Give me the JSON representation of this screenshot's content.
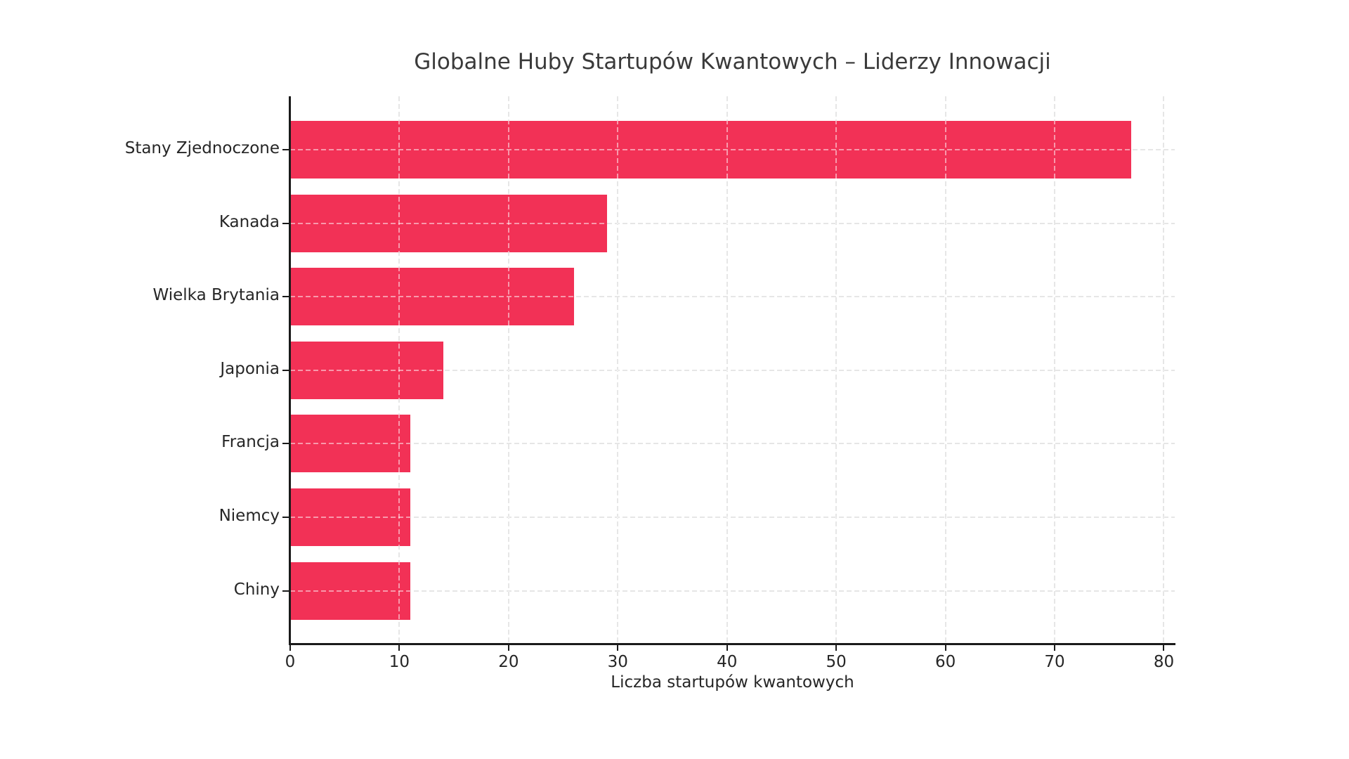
{
  "chart_data": {
    "type": "bar",
    "orientation": "horizontal",
    "title": "Globalne Huby Startupów Kwantowych – Liderzy Innowacji",
    "xlabel": "Liczba startupów kwantowych",
    "ylabel": "",
    "categories": [
      "Stany Zjednoczone",
      "Kanada",
      "Wielka Brytania",
      "Japonia",
      "Francja",
      "Niemcy",
      "Chiny"
    ],
    "values": [
      77,
      29,
      26,
      14,
      11,
      11,
      11
    ],
    "xlim": [
      0,
      81
    ],
    "xticks": [
      0,
      10,
      20,
      30,
      40,
      50,
      60,
      70,
      80
    ],
    "grid": "dashed-both-axes",
    "legend": "none",
    "bar_color": "#F23156",
    "gridline_color": "#cccccc",
    "axis_color": "#1a1a1a",
    "text_color": "#262626",
    "title_color": "#3a3a3a",
    "background_color": "#ffffff"
  }
}
